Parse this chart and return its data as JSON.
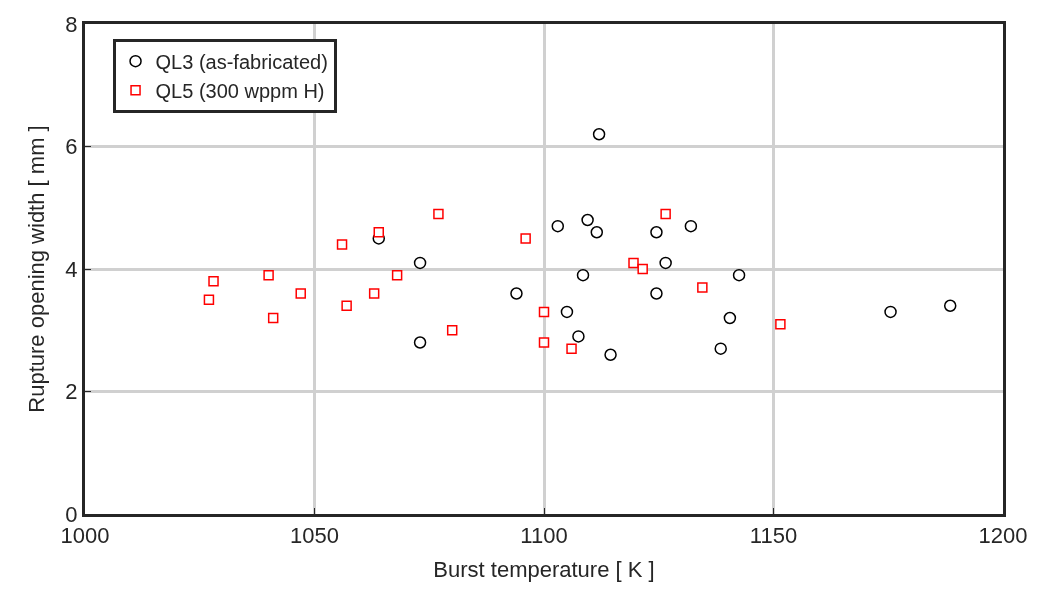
{
  "chart_data": {
    "type": "scatter",
    "xlabel": "Burst temperature [ K ]",
    "ylabel": "Rupture opening width [ mm ]",
    "xlim": [
      1000,
      1200
    ],
    "xticks": [
      1000,
      1050,
      1100,
      1150,
      1200
    ],
    "ylim": [
      0,
      8
    ],
    "yticks": [
      0,
      2,
      4,
      6,
      8
    ],
    "grid": true,
    "legend": "top left",
    "series": [
      {
        "name": "QL3 (as-fabricated)",
        "color": "#000000",
        "marker": "circle",
        "x": [
          1064,
          1073,
          1073,
          1094,
          1103,
          1105,
          1107.5,
          1108.5,
          1109.5,
          1111.5,
          1112,
          1114.5,
          1124.5,
          1124.5,
          1126.5,
          1132,
          1138.5,
          1140.5,
          1142.5,
          1175.5,
          1188.5
        ],
        "values": [
          4.5,
          4.1,
          2.8,
          3.6,
          4.7,
          3.3,
          2.9,
          3.9,
          4.8,
          4.6,
          6.2,
          2.6,
          4.6,
          3.6,
          4.1,
          4.7,
          2.7,
          3.2,
          3.9,
          3.3,
          3.4
        ]
      },
      {
        "name": "QL5 (300 wppm H)",
        "color": "#ff0000",
        "marker": "square",
        "x": [
          1027,
          1028,
          1040,
          1041,
          1047,
          1056,
          1057,
          1063,
          1064,
          1068,
          1077,
          1080,
          1096,
          1100,
          1100,
          1106,
          1119.5,
          1121.5,
          1126.5,
          1134.5,
          1151.5
        ],
        "values": [
          3.5,
          3.8,
          3.9,
          3.2,
          3.6,
          4.4,
          3.4,
          3.6,
          4.6,
          3.9,
          4.9,
          3.0,
          4.5,
          3.3,
          2.8,
          2.7,
          4.1,
          4.0,
          4.9,
          3.7,
          3.1
        ]
      }
    ]
  }
}
